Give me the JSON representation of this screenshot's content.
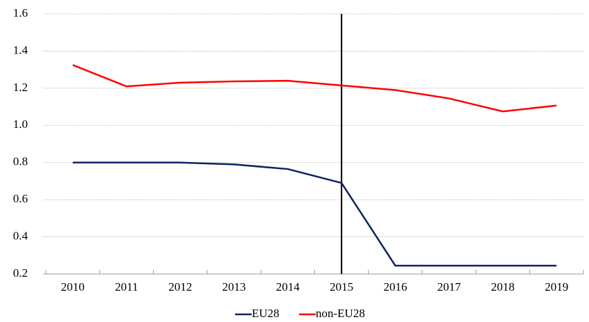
{
  "chart_data": {
    "type": "line",
    "categories": [
      "2010",
      "2011",
      "2012",
      "2013",
      "2014",
      "2015",
      "2016",
      "2017",
      "2018",
      "2019"
    ],
    "series": [
      {
        "name": "EU28",
        "color": "#0d2260",
        "values": [
          0.8,
          0.8,
          0.8,
          0.79,
          0.765,
          0.69,
          0.245,
          0.245,
          0.245,
          0.245
        ]
      },
      {
        "name": "non-EU28",
        "color": "#ff0000",
        "values": [
          1.325,
          1.21,
          1.23,
          1.237,
          1.24,
          1.215,
          1.19,
          1.145,
          1.075,
          1.107
        ]
      }
    ],
    "ylim": [
      0.2,
      1.6
    ],
    "yticks": [
      0.2,
      0.4,
      0.6,
      0.8,
      {
        "value": 1,
        "label": "1.0"
      },
      1.2,
      1.4,
      1.6
    ],
    "grid": true,
    "vertical_line_at": "2015",
    "legend": "bottom"
  }
}
